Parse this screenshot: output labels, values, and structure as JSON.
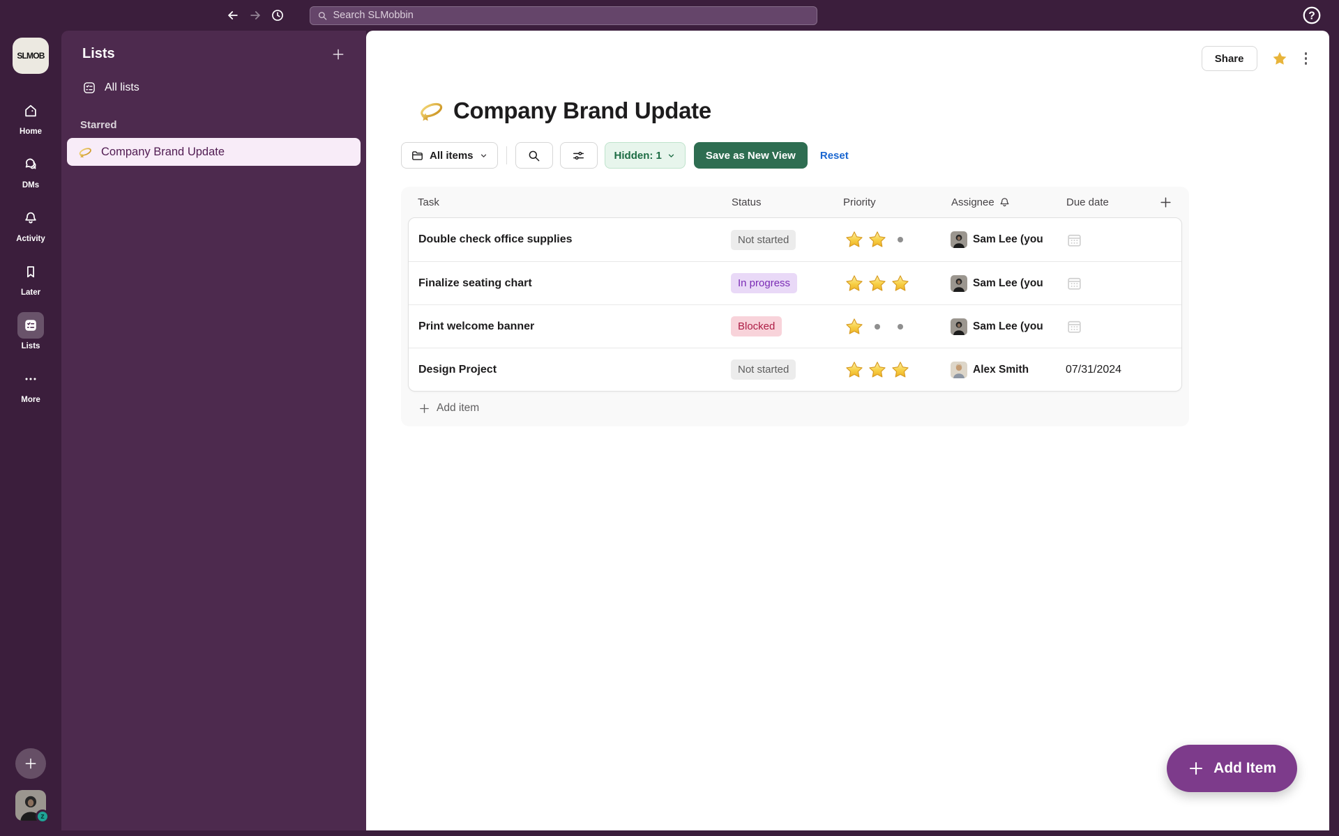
{
  "app": {
    "search_placeholder": "Search SLMobbin",
    "workspace_logo": "SLMOB"
  },
  "rail": {
    "items": [
      {
        "label": "Home"
      },
      {
        "label": "DMs"
      },
      {
        "label": "Activity"
      },
      {
        "label": "Later"
      },
      {
        "label": "Lists",
        "active": true
      },
      {
        "label": "More"
      }
    ]
  },
  "sidebar": {
    "title": "Lists",
    "all_lists_label": "All lists",
    "section_label": "Starred",
    "starred_item_label": "Company Brand Update"
  },
  "header": {
    "share_label": "Share",
    "starred": true
  },
  "page": {
    "title": "Company Brand Update"
  },
  "toolbar": {
    "all_items_label": "All items",
    "hidden_label": "Hidden: 1",
    "save_view_label": "Save as New View",
    "reset_label": "Reset"
  },
  "table": {
    "columns": [
      "Task",
      "Status",
      "Priority",
      "Assignee",
      "Due date"
    ],
    "rows": [
      {
        "task": "Double check office supplies",
        "status": "Not started",
        "status_type": "gray",
        "priority": 2,
        "assignee": "Sam Lee (you",
        "due": ""
      },
      {
        "task": "Finalize seating chart",
        "status": "In progress",
        "status_type": "purple",
        "priority": 3,
        "assignee": "Sam Lee (you",
        "due": ""
      },
      {
        "task": "Print welcome banner",
        "status": "Blocked",
        "status_type": "red",
        "priority": 1,
        "assignee": "Sam Lee (you",
        "due": ""
      },
      {
        "task": "Design Project",
        "status": "Not started",
        "status_type": "gray",
        "priority": 3,
        "assignee": "Alex Smith",
        "due": "07/31/2024"
      }
    ],
    "priority_max": 3,
    "add_item_label": "Add item"
  },
  "fab": {
    "label": "Add Item"
  },
  "icons": {
    "list_emoji": "dizzy-star-emoji",
    "rail": [
      "home-icon",
      "dms-chat-icon",
      "activity-bell-icon",
      "later-bookmark-icon",
      "lists-checklist-icon",
      "more-dots-icon"
    ],
    "topbar": [
      "back-arrow-icon",
      "forward-arrow-icon",
      "history-clock-icon",
      "search-icon",
      "help-icon"
    ],
    "toolbar": [
      "folder-icon",
      "search-icon",
      "filter-sliders-icon",
      "chevron-down-icon"
    ],
    "table": [
      "bell-icon",
      "plus-icon",
      "star-priority-icon",
      "calendar-icon"
    ]
  },
  "colors": {
    "aubergine_base": "#3b1e3c",
    "sidebar_purple": "#4d2a4e",
    "selected_item_bg": "#f8ecf8",
    "save_green": "#2e6d51",
    "hidden_pill_bg": "#e7f5ec",
    "hidden_pill_text": "#1d6c44",
    "reset_blue": "#1a66d0",
    "fab_purple": "#7d3b8b",
    "favorite_gold": "#e8b43a",
    "badge_gray_bg": "#ececec",
    "badge_purple_bg": "#e9d9f7",
    "badge_purple_text": "#7a2bb5",
    "badge_red_bg": "#f8d3da",
    "badge_red_text": "#ad1d45"
  }
}
